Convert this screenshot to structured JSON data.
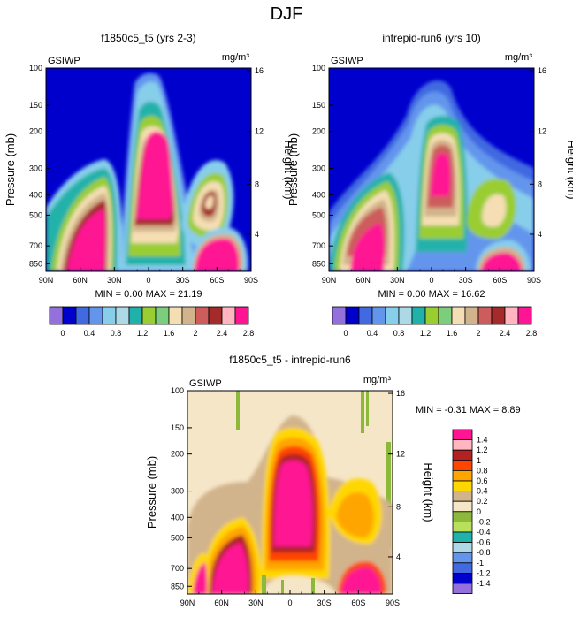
{
  "page_title": "DJF",
  "colors": {
    "levels_main": [
      "#9370DB",
      "#0000CD",
      "#4169E1",
      "#6495ED",
      "#87CEEB",
      "#ADD8E6",
      "#20B2AA",
      "#9ACD32",
      "#7CCD7C",
      "#F5DEB3",
      "#D2B48C",
      "#CD5C5C",
      "#A52A2A",
      "#FFB6C1",
      "#FF1493"
    ],
    "levels_diff": [
      "#9370DB",
      "#0000CD",
      "#4169E1",
      "#6495ED",
      "#ADD8E6",
      "#20B2AA",
      "#B8E05A",
      "#8DB93A",
      "#F5E6C8",
      "#D2B48C",
      "#FFD700",
      "#FFA500",
      "#FF4500",
      "#B22222",
      "#FFB6C1",
      "#FF1493"
    ]
  },
  "chart_data": [
    {
      "type": "heatmap",
      "title": "f1850c5_t5 (yrs 2-3)",
      "left_label": "GSIWP",
      "units_label": "mg/m³",
      "ylabel": "Pressure (mb)",
      "ylabel_right": "Height (km)",
      "x_ticks": [
        "90N",
        "60N",
        "30N",
        "0",
        "30S",
        "60S",
        "90S"
      ],
      "y_ticks": [
        "100",
        "150",
        "200",
        "300",
        "400",
        "500",
        "700",
        "850"
      ],
      "y_right_ticks": [
        "16",
        "12",
        "8",
        "4"
      ],
      "stats": "MIN =   0.00   MAX =  21.19",
      "colorbar_labels": [
        "0",
        "0.4",
        "0.8",
        "1.2",
        "1.6",
        "2",
        "2.4",
        "2.8"
      ]
    },
    {
      "type": "heatmap",
      "title": "intrepid-run6 (yrs 10)",
      "left_label": "GSIWP",
      "units_label": "mg/m³",
      "ylabel": "Pressure (mb)",
      "ylabel_right": "Height (km)",
      "x_ticks": [
        "90N",
        "60N",
        "30N",
        "0",
        "30S",
        "60S",
        "90S"
      ],
      "y_ticks": [
        "100",
        "150",
        "200",
        "300",
        "400",
        "500",
        "700",
        "850"
      ],
      "y_right_ticks": [
        "16",
        "12",
        "8",
        "4"
      ],
      "stats": "MIN =   0.00   MAX =  16.62",
      "colorbar_labels": [
        "0",
        "0.4",
        "0.8",
        "1.2",
        "1.6",
        "2",
        "2.4",
        "2.8"
      ]
    },
    {
      "type": "heatmap",
      "title": "f1850c5_t5 - intrepid-run6",
      "left_label": "GSIWP",
      "units_label": "mg/m³",
      "ylabel": "Pressure (mb)",
      "ylabel_right": "Height (km)",
      "x_ticks": [
        "90N",
        "60N",
        "30N",
        "0",
        "30S",
        "60S",
        "90S"
      ],
      "y_ticks": [
        "100",
        "150",
        "200",
        "300",
        "400",
        "500",
        "700",
        "850"
      ],
      "y_right_ticks": [
        "16",
        "12",
        "8",
        "4"
      ],
      "stats": "MIN =  -0.31   MAX =   8.89",
      "colorbar_labels": [
        "1.4",
        "1.2",
        "1",
        "0.8",
        "0.6",
        "0.4",
        "0.2",
        "0",
        "-0.2",
        "-0.4",
        "-0.6",
        "-0.8",
        "-1",
        "-1.2",
        "-1.4"
      ]
    }
  ]
}
